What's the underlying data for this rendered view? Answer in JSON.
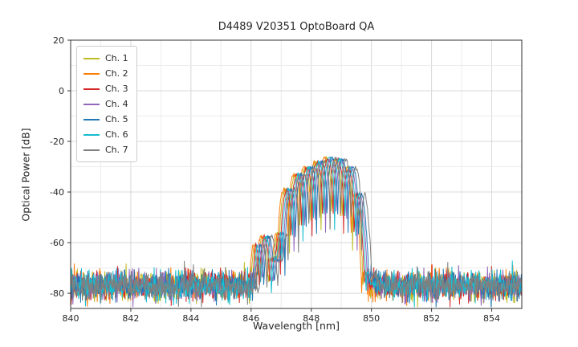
{
  "chart_data": {
    "type": "line",
    "title": "D4489 V20351 OptoBoard QA",
    "xlabel": "Wavelength [nm]",
    "ylabel": "Optical Power [dB]",
    "xlim": [
      840,
      855
    ],
    "ylim": [
      -86,
      20
    ],
    "xticks": [
      840,
      842,
      844,
      846,
      848,
      850,
      852,
      854
    ],
    "yticks": [
      20,
      0,
      -20,
      -40,
      -60,
      -80
    ],
    "grid": true,
    "legend_position": "upper left",
    "noise_floor_db": -77,
    "noise_sigma_db": 2.8,
    "lobe_spacing_nm": 0.35,
    "lobe_center_nm": 848.6,
    "peak_envelope": [
      [
        845.95,
        -95
      ],
      [
        846.2,
        -60
      ],
      [
        846.45,
        -57
      ],
      [
        846.65,
        -60
      ],
      [
        846.85,
        -68
      ],
      [
        847.0,
        -46
      ],
      [
        847.25,
        -38
      ],
      [
        847.6,
        -32.5
      ],
      [
        848.0,
        -29.5
      ],
      [
        848.3,
        -28
      ],
      [
        848.6,
        -26.5
      ],
      [
        848.9,
        -26.8
      ],
      [
        849.15,
        -28.5
      ],
      [
        849.4,
        -32
      ],
      [
        849.6,
        -40
      ],
      [
        849.75,
        -55
      ],
      [
        849.95,
        -75
      ],
      [
        850.1,
        -95
      ]
    ],
    "series": [
      {
        "name": "Ch. 1",
        "color": "#bcbd22",
        "shift_nm": -0.1,
        "seed": 11
      },
      {
        "name": "Ch. 2",
        "color": "#ff7f0e",
        "shift_nm": -0.15,
        "seed": 22
      },
      {
        "name": "Ch. 3",
        "color": "#d62728",
        "shift_nm": -0.05,
        "seed": 33
      },
      {
        "name": "Ch. 4",
        "color": "#9467bd",
        "shift_nm": 0.05,
        "seed": 44
      },
      {
        "name": "Ch. 5",
        "color": "#1f77b4",
        "shift_nm": 0.1,
        "seed": 55
      },
      {
        "name": "Ch. 6",
        "color": "#17becf",
        "shift_nm": 0.0,
        "seed": 66
      },
      {
        "name": "Ch. 7",
        "color": "#7f7f7f",
        "shift_nm": 0.2,
        "seed": 77
      }
    ]
  }
}
